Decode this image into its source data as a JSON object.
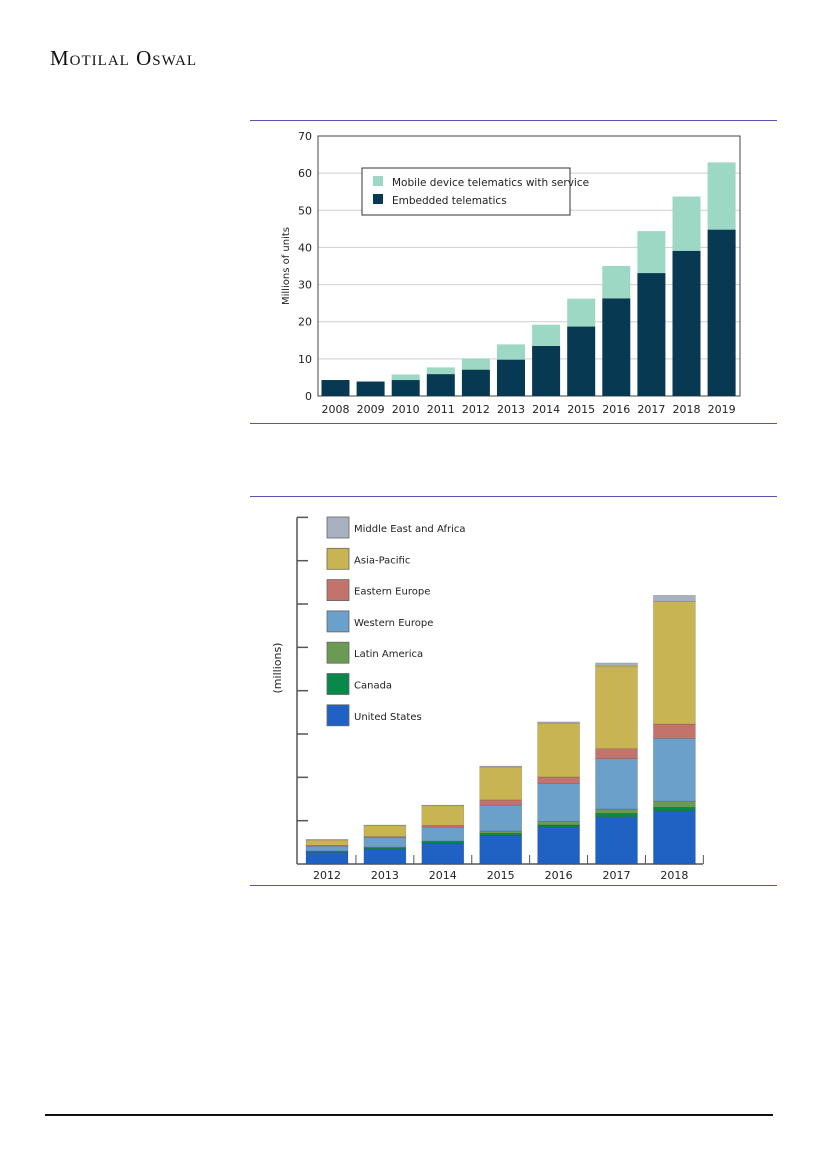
{
  "header": {
    "brand": "Motilal Oswal"
  },
  "chart_data": [
    {
      "type": "bar",
      "stacked": true,
      "title": "",
      "xlabel": "",
      "ylabel": "Millions of units",
      "ylim": [
        0,
        70
      ],
      "yticks": [
        0,
        10,
        20,
        30,
        40,
        50,
        60,
        70
      ],
      "grid": true,
      "legend_position": "top-left",
      "categories": [
        "2008",
        "2009",
        "2010",
        "2011",
        "2012",
        "2013",
        "2014",
        "2015",
        "2016",
        "2017",
        "2018",
        "2019"
      ],
      "series": [
        {
          "name": "Embedded telematics",
          "color": "#073a52",
          "values": [
            4.3,
            3.9,
            4.3,
            5.9,
            7.1,
            9.8,
            13.5,
            18.7,
            26.3,
            33.1,
            39.1,
            44.8
          ]
        },
        {
          "name": "Mobile device telematics with service",
          "color": "#9dd8c5",
          "values": [
            0,
            0,
            1.5,
            1.8,
            3.0,
            4.1,
            5.7,
            7.5,
            8.7,
            11.3,
            14.6,
            18.1
          ]
        }
      ],
      "legend_order": [
        "Mobile device telematics with service",
        "Embedded telematics"
      ]
    },
    {
      "type": "bar",
      "stacked": true,
      "title": "",
      "xlabel": "",
      "ylabel": "(millions)",
      "ylim": [
        0,
        8
      ],
      "yticks_unlabeled": 8,
      "grid": false,
      "legend_position": "top-left",
      "categories": [
        "2012",
        "2013",
        "2014",
        "2015",
        "2016",
        "2017",
        "2018"
      ],
      "series": [
        {
          "name": "United States",
          "color": "#1f62c4",
          "values": [
            0.27,
            0.35,
            0.48,
            0.66,
            0.85,
            1.09,
            1.23
          ]
        },
        {
          "name": "Canada",
          "color": "#08894a",
          "values": [
            0.02,
            0.03,
            0.04,
            0.05,
            0.05,
            0.08,
            0.08
          ]
        },
        {
          "name": "Latin America",
          "color": "#6b9a55",
          "values": [
            0.01,
            0.01,
            0.01,
            0.05,
            0.08,
            0.1,
            0.14
          ]
        },
        {
          "name": "Western Europe",
          "color": "#6aa0ca",
          "values": [
            0.12,
            0.23,
            0.32,
            0.6,
            0.88,
            1.16,
            1.45
          ]
        },
        {
          "name": "Eastern Europe",
          "color": "#c2736b",
          "values": [
            0.01,
            0.01,
            0.04,
            0.12,
            0.15,
            0.23,
            0.33
          ]
        },
        {
          "name": "Asia-Pacific",
          "color": "#c9b454",
          "values": [
            0.13,
            0.26,
            0.46,
            0.76,
            1.24,
            1.91,
            2.83
          ]
        },
        {
          "name": "Middle East and Africa",
          "color": "#a9b0c0",
          "values": [
            0.01,
            0.01,
            0.01,
            0.02,
            0.03,
            0.07,
            0.14
          ]
        }
      ],
      "legend_order": [
        "Middle East and Africa",
        "Asia-Pacific",
        "Eastern Europe",
        "Western Europe",
        "Latin America",
        "Canada",
        "United States"
      ]
    }
  ]
}
